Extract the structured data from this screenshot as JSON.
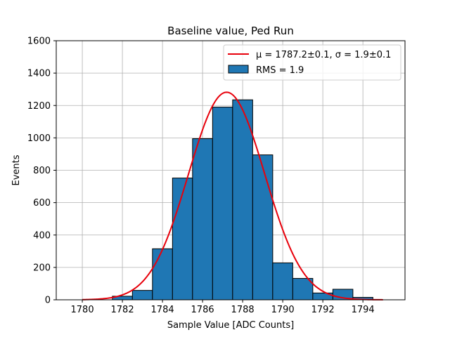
{
  "chart_data": {
    "type": "bar",
    "title": "Baseline value, Ped Run",
    "xlabel": "Sample Value [ADC Counts]",
    "ylabel": "Events",
    "xlim": [
      1778.7,
      1796.1
    ],
    "ylim": [
      0,
      1600
    ],
    "xticks": [
      1780,
      1782,
      1784,
      1786,
      1788,
      1790,
      1792,
      1794
    ],
    "yticks": [
      0,
      200,
      400,
      600,
      800,
      1000,
      1200,
      1400,
      1600
    ],
    "grid": true,
    "legend_position": "top-right",
    "bin_width": 1,
    "bins": [
      {
        "center": 1780,
        "count": 0
      },
      {
        "center": 1781,
        "count": 0
      },
      {
        "center": 1782,
        "count": 22
      },
      {
        "center": 1783,
        "count": 58
      },
      {
        "center": 1784,
        "count": 315
      },
      {
        "center": 1785,
        "count": 752
      },
      {
        "center": 1786,
        "count": 995
      },
      {
        "center": 1787,
        "count": 1190
      },
      {
        "center": 1788,
        "count": 1235
      },
      {
        "center": 1789,
        "count": 895
      },
      {
        "center": 1790,
        "count": 228
      },
      {
        "center": 1791,
        "count": 132
      },
      {
        "center": 1792,
        "count": 42
      },
      {
        "center": 1793,
        "count": 65
      },
      {
        "center": 1794,
        "count": 15
      }
    ],
    "fit": {
      "type": "gaussian",
      "mu": 1787.2,
      "sigma": 1.9,
      "amplitude": 1282,
      "x_range": [
        1780,
        1795
      ]
    },
    "legend": [
      {
        "label": "μ = 1787.2±0.1, σ = 1.9±0.1",
        "kind": "line",
        "color": "#e8000b"
      },
      {
        "label": "RMS = 1.9",
        "kind": "patch",
        "color": "#1f77b4"
      }
    ],
    "colors": {
      "bar": "#1f77b4",
      "bar_edge": "#000000",
      "fit": "#e8000b",
      "grid": "#b0b0b0"
    }
  }
}
